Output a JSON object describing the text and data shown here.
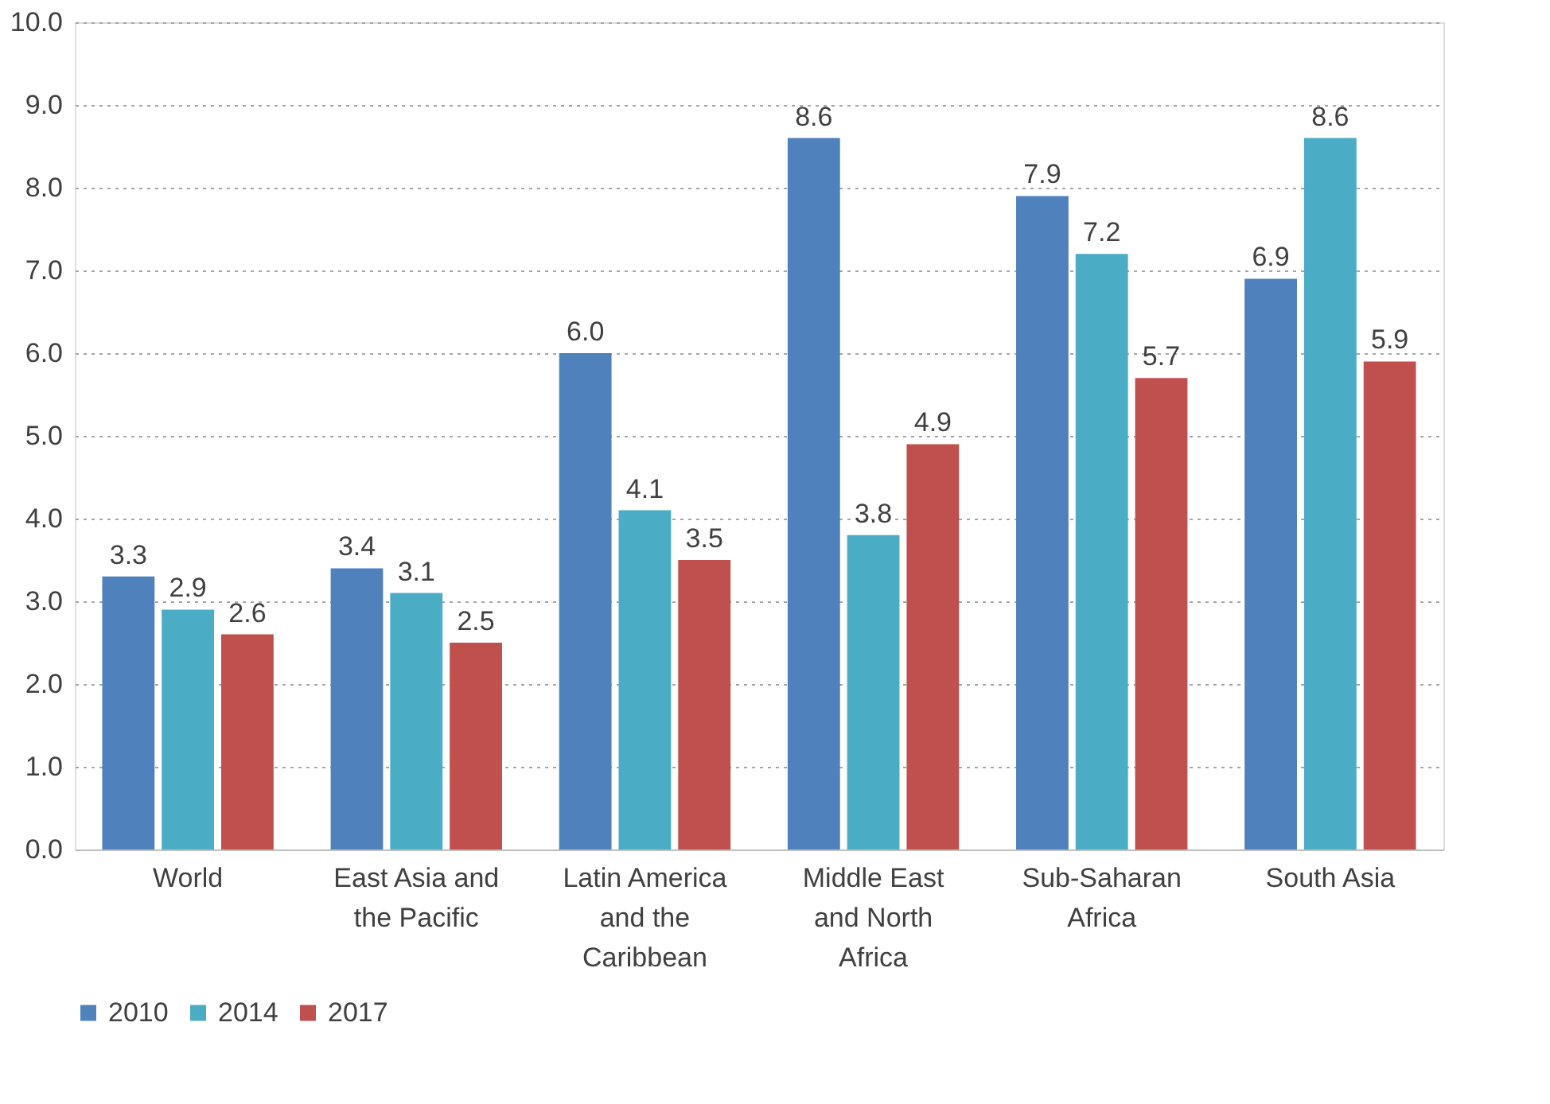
{
  "chart_data": {
    "type": "bar",
    "categories": [
      "World",
      "East Asia and the Pacific",
      "Latin America and the Caribbean",
      "Middle East and North Africa",
      "Sub-Saharan Africa",
      "South Asia"
    ],
    "series": [
      {
        "name": "2010",
        "color": "#4f81bd",
        "values": [
          3.3,
          3.4,
          6.0,
          8.6,
          7.9,
          6.9
        ],
        "value_labels": [
          "3.3",
          "3.4",
          "6.0",
          "8.6",
          "7.9",
          "6.9"
        ]
      },
      {
        "name": "2014",
        "color": "#4bacc6",
        "values": [
          2.9,
          3.1,
          4.1,
          3.8,
          7.2,
          8.6
        ],
        "value_labels": [
          "2.9",
          "3.1",
          "4.1",
          "3.8",
          "7.2",
          "8.6"
        ]
      },
      {
        "name": "2017",
        "color": "#c0504d",
        "values": [
          2.6,
          2.5,
          3.5,
          4.9,
          5.7,
          5.9
        ],
        "value_labels": [
          "2.6",
          "2.5",
          "3.5",
          "4.9",
          "5.7",
          "5.9"
        ]
      }
    ],
    "ylim": [
      0,
      10
    ],
    "yticks": [
      {
        "value": 0,
        "label": "0.0"
      },
      {
        "value": 1,
        "label": "1.0"
      },
      {
        "value": 2,
        "label": "2.0"
      },
      {
        "value": 3,
        "label": "3.0"
      },
      {
        "value": 4,
        "label": "4.0"
      },
      {
        "value": 5,
        "label": "5.0"
      },
      {
        "value": 6,
        "label": "6.0"
      },
      {
        "value": 7,
        "label": "7.0"
      },
      {
        "value": 8,
        "label": "8.0"
      },
      {
        "value": 9,
        "label": "9.0"
      },
      {
        "value": 10,
        "label": "10.0"
      }
    ],
    "grid": "y",
    "legend": "bottom"
  }
}
